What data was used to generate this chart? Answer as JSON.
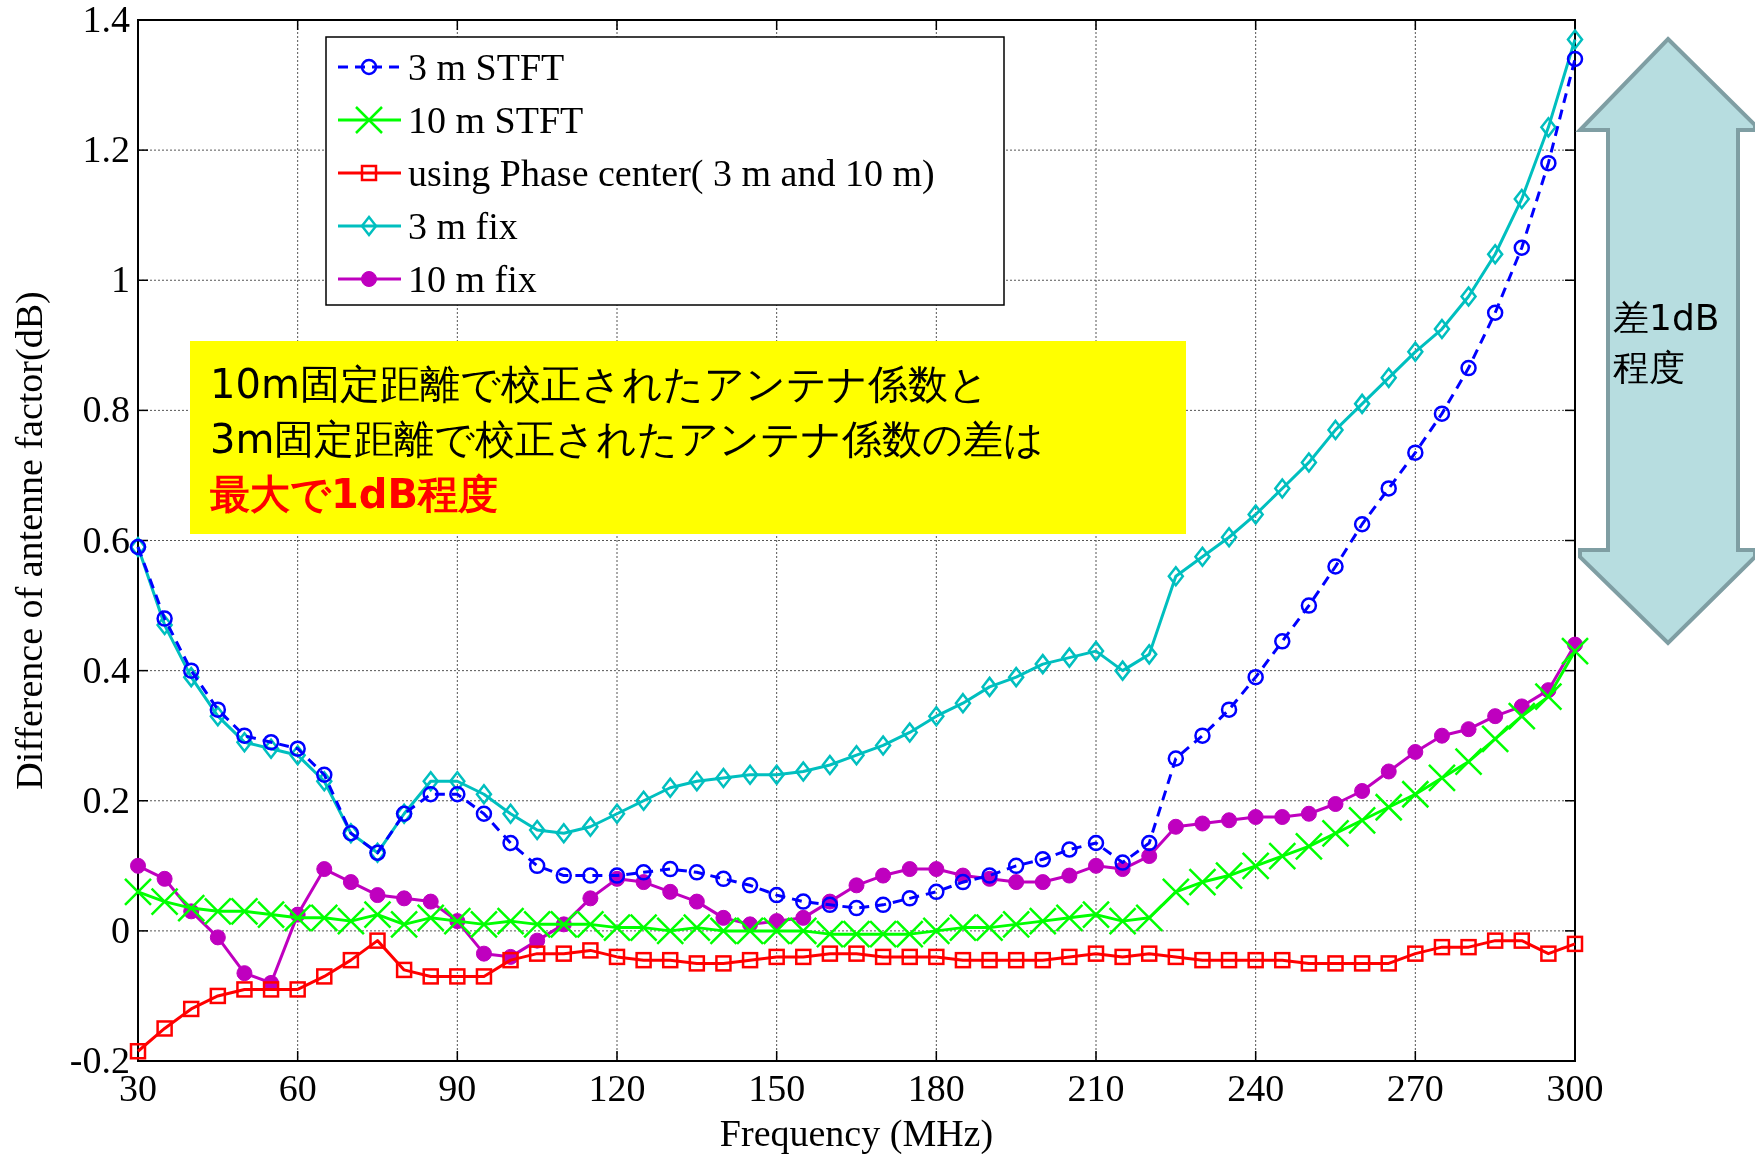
{
  "chart_data": {
    "type": "line",
    "xlabel": "Frequency (MHz)",
    "ylabel": "Difference of antenne factor(dB)",
    "xlim": [
      30,
      300
    ],
    "xticks": [
      30,
      60,
      90,
      120,
      150,
      180,
      210,
      240,
      270,
      300
    ],
    "ylim": [
      -0.2,
      1.4
    ],
    "yticks": [
      -0.2,
      0,
      0.2,
      0.4,
      0.6,
      0.8,
      1,
      1.2,
      1.4
    ],
    "grid": true,
    "legend": "top left",
    "x": [
      30,
      35,
      40,
      45,
      50,
      55,
      60,
      65,
      70,
      75,
      80,
      85,
      90,
      95,
      100,
      105,
      110,
      115,
      120,
      125,
      130,
      135,
      140,
      145,
      150,
      155,
      160,
      165,
      170,
      175,
      180,
      185,
      190,
      195,
      200,
      205,
      210,
      215,
      220,
      225,
      230,
      235,
      240,
      245,
      250,
      255,
      260,
      265,
      270,
      275,
      280,
      285,
      290,
      295,
      300
    ],
    "series": [
      {
        "name": "3 m STFT",
        "color": "#0000ff",
        "marker": "circle",
        "line_style": "dashed",
        "values": [
          0.59,
          0.48,
          0.4,
          0.34,
          0.3,
          0.29,
          0.28,
          0.24,
          0.15,
          0.12,
          0.18,
          0.21,
          0.21,
          0.18,
          0.135,
          0.1,
          0.085,
          0.085,
          0.085,
          0.09,
          0.095,
          0.09,
          0.08,
          0.07,
          0.055,
          0.045,
          0.04,
          0.035,
          0.04,
          0.05,
          0.06,
          0.075,
          0.085,
          0.1,
          0.11,
          0.125,
          0.135,
          0.105,
          0.135,
          0.265,
          0.3,
          0.34,
          0.39,
          0.445,
          0.5,
          0.56,
          0.625,
          0.68,
          0.735,
          0.795,
          0.865,
          0.95,
          1.05,
          1.18,
          1.34
        ]
      },
      {
        "name": "10 m STFT",
        "color": "#00ff00",
        "marker": "cross",
        "line_style": "solid",
        "values": [
          0.06,
          0.045,
          0.035,
          0.03,
          0.03,
          0.025,
          0.02,
          0.02,
          0.015,
          0.025,
          0.01,
          0.02,
          0.015,
          0.01,
          0.015,
          0.01,
          0.01,
          0.01,
          0.005,
          0.005,
          0,
          0.005,
          0,
          0,
          0,
          0,
          -0.005,
          -0.005,
          -0.005,
          -0.005,
          0,
          0.005,
          0.005,
          0.01,
          0.015,
          0.02,
          0.025,
          0.015,
          0.02,
          0.06,
          0.075,
          0.085,
          0.1,
          0.115,
          0.13,
          0.15,
          0.17,
          0.19,
          0.21,
          0.235,
          0.26,
          0.295,
          0.33,
          0.36,
          0.43
        ]
      },
      {
        "name": "using Phase center( 3 m and 10 m)",
        "color": "#ff0000",
        "marker": "square",
        "line_style": "solid",
        "values": [
          -0.185,
          -0.15,
          -0.12,
          -0.1,
          -0.09,
          -0.09,
          -0.09,
          -0.07,
          -0.045,
          -0.015,
          -0.06,
          -0.07,
          -0.07,
          -0.07,
          -0.045,
          -0.035,
          -0.035,
          -0.03,
          -0.04,
          -0.045,
          -0.045,
          -0.05,
          -0.05,
          -0.045,
          -0.04,
          -0.04,
          -0.035,
          -0.035,
          -0.04,
          -0.04,
          -0.04,
          -0.045,
          -0.045,
          -0.045,
          -0.045,
          -0.04,
          -0.035,
          -0.04,
          -0.035,
          -0.04,
          -0.045,
          -0.045,
          -0.045,
          -0.045,
          -0.05,
          -0.05,
          -0.05,
          -0.05,
          -0.035,
          -0.025,
          -0.025,
          -0.015,
          -0.015,
          -0.035,
          -0.02
        ]
      },
      {
        "name": "3 m fix",
        "color": "#00bfbf",
        "marker": "diamond",
        "line_style": "solid",
        "values": [
          0.59,
          0.47,
          0.39,
          0.33,
          0.29,
          0.28,
          0.27,
          0.23,
          0.15,
          0.12,
          0.18,
          0.23,
          0.23,
          0.21,
          0.18,
          0.155,
          0.15,
          0.16,
          0.18,
          0.2,
          0.22,
          0.23,
          0.235,
          0.24,
          0.24,
          0.245,
          0.255,
          0.27,
          0.285,
          0.305,
          0.33,
          0.35,
          0.375,
          0.39,
          0.41,
          0.42,
          0.43,
          0.4,
          0.425,
          0.545,
          0.575,
          0.605,
          0.64,
          0.68,
          0.72,
          0.77,
          0.81,
          0.85,
          0.89,
          0.925,
          0.975,
          1.04,
          1.125,
          1.235,
          1.37
        ]
      },
      {
        "name": "10 m fix",
        "color": "#bf00bf",
        "marker": "dot",
        "line_style": "solid",
        "values": [
          0.1,
          0.08,
          0.03,
          -0.01,
          -0.065,
          -0.08,
          0.025,
          0.095,
          0.075,
          0.055,
          0.05,
          0.045,
          0.015,
          -0.035,
          -0.04,
          -0.015,
          0.01,
          0.05,
          0.08,
          0.075,
          0.06,
          0.045,
          0.02,
          0.01,
          0.015,
          0.02,
          0.045,
          0.07,
          0.085,
          0.095,
          0.095,
          0.085,
          0.08,
          0.075,
          0.075,
          0.085,
          0.1,
          0.095,
          0.115,
          0.16,
          0.165,
          0.17,
          0.175,
          0.175,
          0.18,
          0.195,
          0.215,
          0.245,
          0.275,
          0.3,
          0.31,
          0.33,
          0.345,
          0.37,
          0.44
        ]
      }
    ],
    "annotations": [
      "10m固定距離で校正されたアンテナ係数と",
      "3m固定距離で校正されたアンテナ係数の差は",
      "最大で1dB程度",
      "差1dB",
      "程度"
    ]
  }
}
